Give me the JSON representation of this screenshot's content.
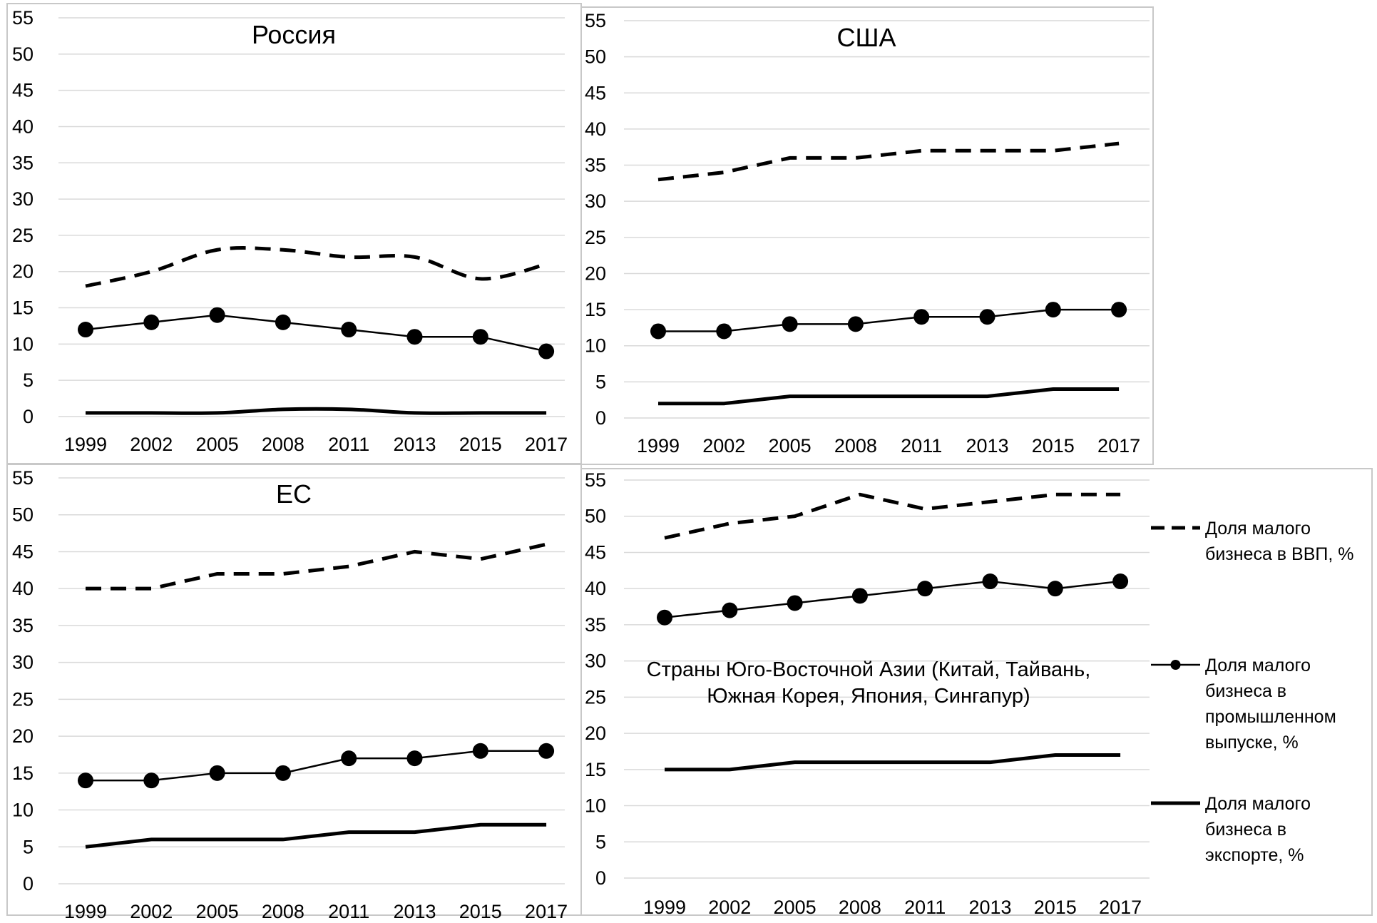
{
  "chart_data": [
    {
      "type": "line",
      "title": "Россия",
      "categories": [
        "1999",
        "2002",
        "2005",
        "2008",
        "2011",
        "2013",
        "2015",
        "2017"
      ],
      "yticks": [
        "0",
        "5",
        "10",
        "15",
        "20",
        "25",
        "30",
        "35",
        "40",
        "45",
        "50",
        "55"
      ],
      "ylim": [
        0,
        55
      ],
      "grid": true,
      "series": [
        {
          "name": "Доля малого бизнеса в ВВП, %",
          "style": "dashed",
          "smooth": true,
          "values": [
            18,
            20,
            23,
            23,
            22,
            22,
            19,
            21
          ]
        },
        {
          "name": "Доля малого бизнеса в промышленном выпуске, %",
          "style": "markers",
          "smooth": false,
          "values": [
            12,
            13,
            14,
            13,
            12,
            11,
            11,
            9
          ]
        },
        {
          "name": "Доля малого бизнеса в экспорте, %",
          "style": "solid",
          "smooth": true,
          "values": [
            0.5,
            0.5,
            0.5,
            1,
            1,
            0.5,
            0.5,
            0.5
          ]
        }
      ]
    },
    {
      "type": "line",
      "title": "США",
      "categories": [
        "1999",
        "2002",
        "2005",
        "2008",
        "2011",
        "2013",
        "2015",
        "2017"
      ],
      "yticks": [
        "0",
        "5",
        "10",
        "15",
        "20",
        "25",
        "30",
        "35",
        "40",
        "45",
        "50",
        "55"
      ],
      "ylim": [
        0,
        55
      ],
      "grid": true,
      "series": [
        {
          "name": "Доля малого бизнеса в ВВП, %",
          "style": "dashed",
          "smooth": false,
          "values": [
            33,
            34,
            36,
            36,
            37,
            37,
            37,
            38
          ]
        },
        {
          "name": "Доля малого бизнеса в промышленном выпуске, %",
          "style": "markers",
          "smooth": false,
          "values": [
            12,
            12,
            13,
            13,
            14,
            14,
            15,
            15
          ]
        },
        {
          "name": "Доля малого бизнеса в экспорте, %",
          "style": "solid",
          "smooth": false,
          "values": [
            2,
            2,
            3,
            3,
            3,
            3,
            4,
            4
          ]
        }
      ]
    },
    {
      "type": "line",
      "title": "ЕС",
      "categories": [
        "1999",
        "2002",
        "2005",
        "2008",
        "2011",
        "2013",
        "2015",
        "2017"
      ],
      "yticks": [
        "0",
        "5",
        "10",
        "15",
        "20",
        "25",
        "30",
        "35",
        "40",
        "45",
        "50",
        "55"
      ],
      "ylim": [
        0,
        55
      ],
      "grid": true,
      "series": [
        {
          "name": "Доля малого бизнеса в ВВП, %",
          "style": "dashed",
          "smooth": false,
          "values": [
            40,
            40,
            42,
            42,
            43,
            45,
            44,
            46
          ]
        },
        {
          "name": "Доля малого бизнеса в промышленном выпуске, %",
          "style": "markers",
          "smooth": false,
          "values": [
            14,
            14,
            15,
            15,
            17,
            17,
            18,
            18
          ]
        },
        {
          "name": "Доля малого бизнеса в экспорте, %",
          "style": "solid",
          "smooth": false,
          "values": [
            5,
            6,
            6,
            6,
            7,
            7,
            8,
            8
          ]
        }
      ]
    },
    {
      "type": "line",
      "title": "Страны Юго-Восточной Азии (Китай, Тайвань, Южная Корея, Япония, Сингапур)",
      "title_lines": [
        "Страны Юго-Восточной Азии (Китай, Тайвань,",
        "Южная Корея, Япония, Сингапур)"
      ],
      "categories": [
        "1999",
        "2002",
        "2005",
        "2008",
        "2011",
        "2013",
        "2015",
        "2017"
      ],
      "yticks": [
        "0",
        "5",
        "10",
        "15",
        "20",
        "25",
        "30",
        "35",
        "40",
        "45",
        "50",
        "55"
      ],
      "ylim": [
        0,
        55
      ],
      "grid": true,
      "legend_position": "right",
      "legend_lines": [
        [
          "Доля малого",
          "бизнеса в ВВП, %"
        ],
        [
          "Доля малого",
          "бизнеса в",
          "промышленном",
          "выпуске, %"
        ],
        [
          "Доля малого",
          "бизнеса в",
          "экспорте, %"
        ]
      ],
      "series": [
        {
          "name": "Доля малого бизнеса в ВВП, %",
          "style": "dashed",
          "smooth": false,
          "values": [
            47,
            49,
            50,
            53,
            51,
            52,
            53,
            53
          ]
        },
        {
          "name": "Доля малого бизнеса в промышленном выпуске, %",
          "style": "markers",
          "smooth": false,
          "values": [
            36,
            37,
            38,
            39,
            40,
            41,
            40,
            41
          ]
        },
        {
          "name": "Доля малого бизнеса в экспорте, %",
          "style": "solid",
          "smooth": false,
          "values": [
            15,
            15,
            16,
            16,
            16,
            16,
            17,
            17
          ]
        }
      ]
    }
  ]
}
